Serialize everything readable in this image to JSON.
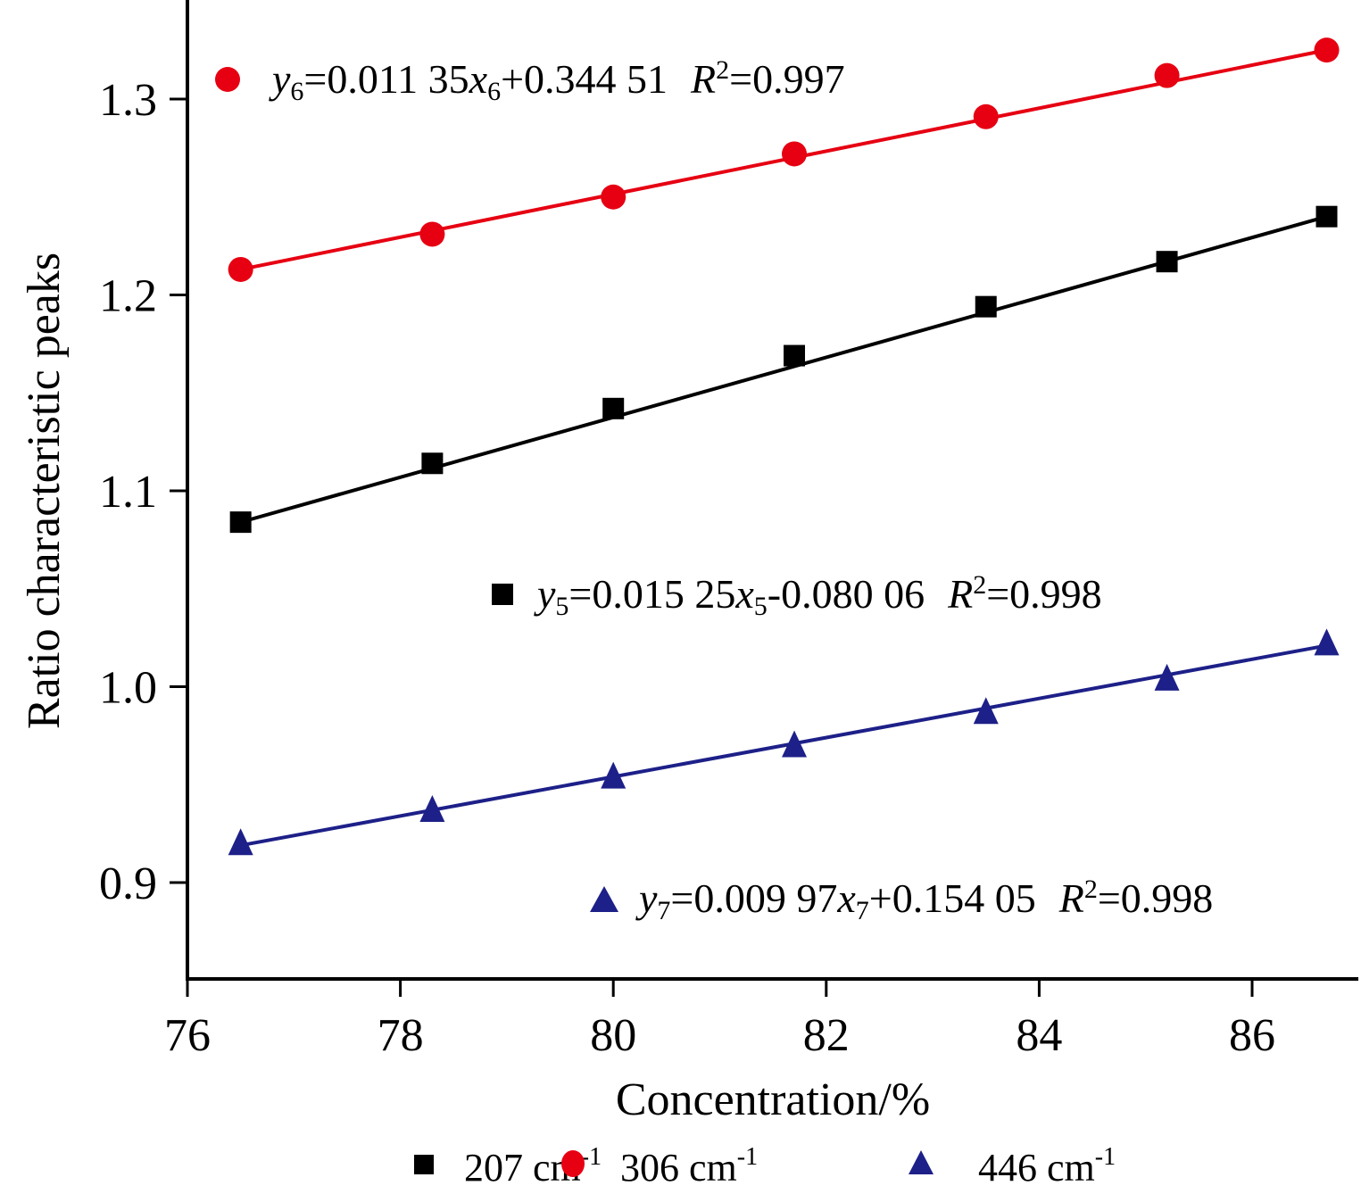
{
  "chart_data": {
    "type": "scatter",
    "title": "",
    "xlabel": "Concentration/%",
    "ylabel": "Ratio characteristic peaks",
    "xlim": [
      76,
      87
    ],
    "ylim": [
      0.85,
      1.35
    ],
    "xticks": [
      76,
      78,
      80,
      82,
      84,
      86
    ],
    "xtick_labels": [
      "76",
      "78",
      "80",
      "82",
      "84",
      "86"
    ],
    "yticks": [
      0.9,
      1.0,
      1.1,
      1.2,
      1.3
    ],
    "ytick_labels": [
      "0.9",
      "1.0",
      "1.1",
      "1.2",
      "1.3"
    ],
    "grid": false,
    "legend_position": "bottom",
    "x": [
      76.5,
      78.3,
      80.0,
      81.7,
      83.5,
      85.2,
      86.7
    ],
    "series": [
      {
        "name": "207 cm-1",
        "label_main": "207 cm",
        "label_sup": "-1",
        "marker": "square",
        "color": "#000000",
        "values": [
          1.084,
          1.114,
          1.142,
          1.169,
          1.194,
          1.217,
          1.24
        ],
        "fit": {
          "slope": 0.01525,
          "intercept": -0.08006,
          "r2": 0.998
        },
        "equation": {
          "y": "y",
          "sub": "5",
          "eq1": "=0.015 25",
          "x": "x",
          "xsub": "5",
          "eq2": "-0.080 06",
          "r": "R",
          "rsup": "2",
          "r2val": "=0.998"
        }
      },
      {
        "name": "306 cm-1",
        "label_main": "306 cm",
        "label_sup": "-1",
        "marker": "circle",
        "color": "#e60012",
        "values": [
          1.213,
          1.231,
          1.25,
          1.272,
          1.291,
          1.312,
          1.325
        ],
        "fit": {
          "slope": 0.01135,
          "intercept": 0.34451,
          "r2": 0.997
        },
        "equation": {
          "y": "y",
          "sub": "6",
          "eq1": "=0.011 35",
          "x": "x",
          "xsub": "6",
          "eq2": "+0.344 51",
          "r": "R",
          "rsup": "2",
          "r2val": "=0.997"
        }
      },
      {
        "name": "446 cm-1",
        "label_main": "446 cm",
        "label_sup": "-1",
        "marker": "triangle",
        "color": "#1d2088",
        "values": [
          0.919,
          0.936,
          0.953,
          0.969,
          0.986,
          1.003,
          1.021
        ],
        "fit": {
          "slope": 0.00997,
          "intercept": 0.15405,
          "r2": 0.998
        },
        "equation": {
          "y": "y",
          "sub": "7",
          "eq1": "=0.009 97",
          "x": "x",
          "xsub": "7",
          "eq2": "+0.154 05",
          "r": "R",
          "rsup": "2",
          "r2val": "=0.998"
        }
      }
    ]
  }
}
